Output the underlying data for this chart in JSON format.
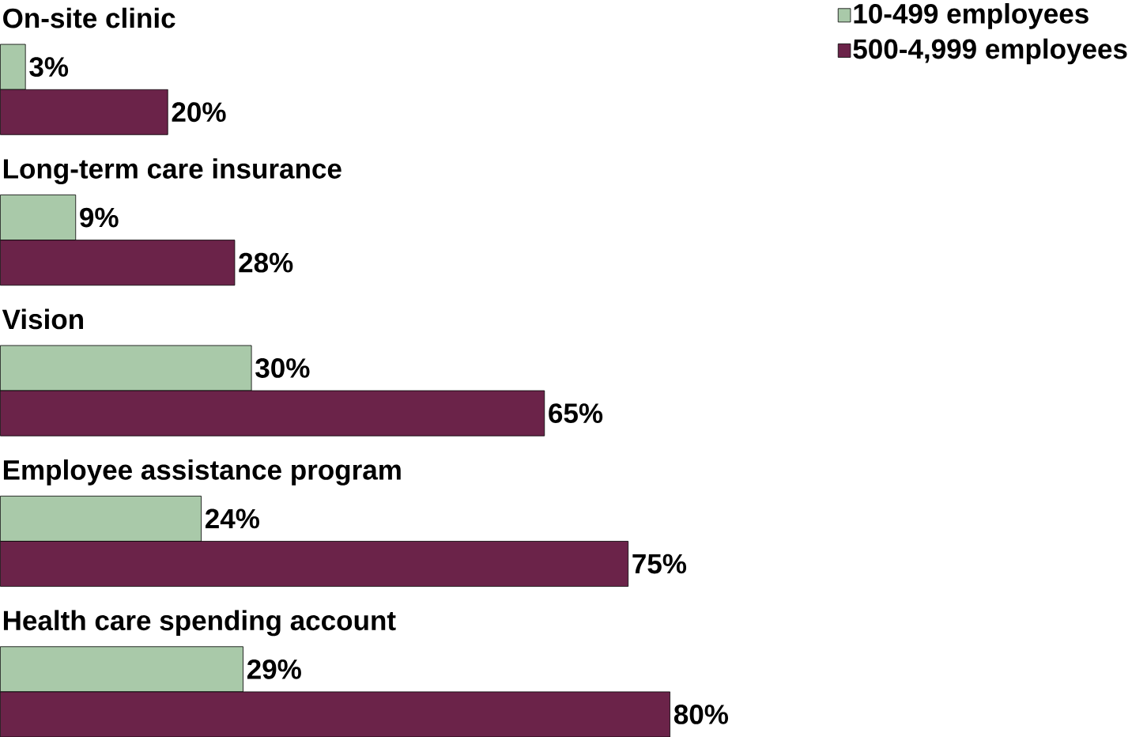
{
  "chart_data": {
    "type": "bar",
    "orientation": "horizontal",
    "categories": [
      "On-site clinic",
      "Long-term care insurance",
      "Vision",
      "Employee assistance program",
      "Health care spending account"
    ],
    "series": [
      {
        "name": "10-499 employees",
        "color": "#a9c9a9",
        "values": [
          3,
          9,
          30,
          24,
          29
        ],
        "value_labels": [
          "3%",
          "9%",
          "30%",
          "24%",
          "29%"
        ]
      },
      {
        "name": "500-4,999 employees",
        "color": "#6b2349",
        "values": [
          20,
          28,
          65,
          75,
          80
        ],
        "value_labels": [
          "20%",
          "28%",
          "65%",
          "75%",
          "80%"
        ]
      }
    ],
    "legend": "top right"
  }
}
